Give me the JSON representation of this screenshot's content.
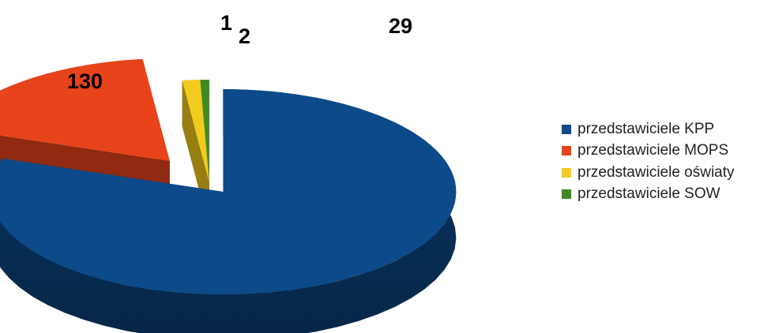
{
  "chart_data": {
    "type": "pie",
    "style": "3d-exploded",
    "title": "",
    "slices": [
      {
        "label": "przedstawiciele KPP",
        "value": 130,
        "display": "130",
        "color": "#0c4a8a"
      },
      {
        "label": "przedstawiciele MOPS",
        "value": 29,
        "display": "29",
        "color": "#e8431a"
      },
      {
        "label": "przedstawiciele oświaty",
        "value": 2,
        "display": "2",
        "color": "#f2cb1f"
      },
      {
        "label": "przedstawiciele SOW",
        "value": 1,
        "display": "1",
        "color": "#3d8c22"
      }
    ],
    "legend": {
      "placement": "right",
      "items": [
        {
          "label": "przedstawiciele KPP",
          "color": "#0c4a8a"
        },
        {
          "label": "przedstawiciele MOPS",
          "color": "#e8431a"
        },
        {
          "label": "przedstawiciele oświaty",
          "color": "#f2cb1f"
        },
        {
          "label": "przedstawiciele SOW",
          "color": "#3d8c22"
        }
      ]
    }
  }
}
